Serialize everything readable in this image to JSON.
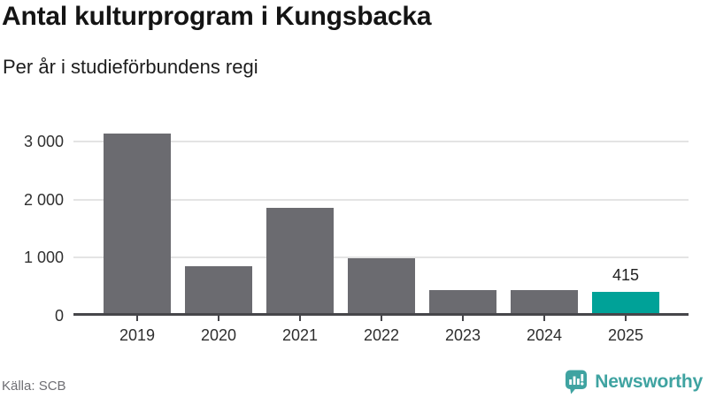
{
  "header": {
    "title": "Antal kulturprogram i Kungsbacka",
    "subtitle": "Per år i studieförbundens regi"
  },
  "footer": {
    "source": "Källa: SCB",
    "brand": "Newsworthy",
    "brand_icon": "newsworthy-speech-bubble-bar-chart-icon"
  },
  "colors": {
    "bar_default": "#6b6b70",
    "bar_highlight": "#00a298",
    "brand": "#3fa3a1",
    "grid": "#e4e4e4",
    "axis": "#46464a",
    "title_text": "#141414",
    "body_text": "#1d1d1d",
    "muted_text": "#6e6e73"
  },
  "chart_data": {
    "type": "bar",
    "title": "Antal kulturprogram i Kungsbacka",
    "subtitle": "Per år i studieförbundens regi",
    "source": "Källa: SCB",
    "categories": [
      "2019",
      "2020",
      "2021",
      "2022",
      "2023",
      "2024",
      "2025"
    ],
    "values": [
      3130,
      860,
      1860,
      990,
      435,
      435,
      415
    ],
    "value_labels": [
      "",
      "",
      "",
      "",
      "",
      "",
      "415"
    ],
    "highlight_index": 6,
    "yticks": [
      {
        "value": 0,
        "label": "0"
      },
      {
        "value": 1000,
        "label": "1 000"
      },
      {
        "value": 2000,
        "label": "2 000"
      },
      {
        "value": 3000,
        "label": "3 000"
      }
    ],
    "ylim": [
      0,
      3304
    ],
    "xlabel": "",
    "ylabel": "",
    "grid": "horizontal",
    "legend": "none"
  }
}
